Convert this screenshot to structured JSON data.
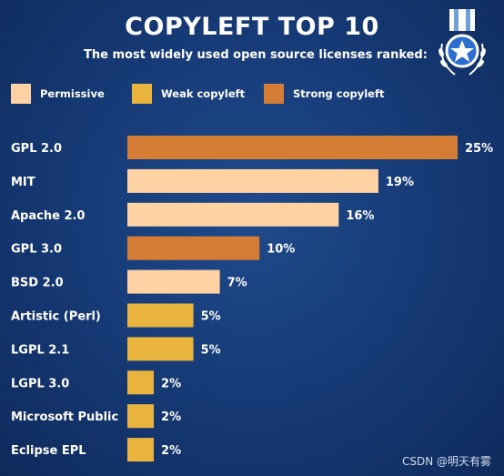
{
  "chart_data": {
    "type": "bar",
    "orientation": "horizontal",
    "title": "COPYLEFT TOP 10",
    "subtitle": "The most widely used open source licenses ranked:",
    "legend": [
      {
        "label": "Permissive",
        "color": "#ffd2a4"
      },
      {
        "label": "Weak copyleft",
        "color": "#e8b43e"
      },
      {
        "label": "Strong copyleft",
        "color": "#d57c35"
      }
    ],
    "legend_position": "top-left",
    "categories": [
      "GPL 2.0",
      "MIT",
      "Apache 2.0",
      "GPL 3.0",
      "BSD 2.0",
      "Artistic (Perl)",
      "LGPL 2.1",
      "LGPL 3.0",
      "Microsoft Public",
      "Eclipse EPL"
    ],
    "values": [
      25,
      19,
      16,
      10,
      7,
      5,
      5,
      2,
      2,
      2
    ],
    "value_labels": [
      "25%",
      "19%",
      "16%",
      "10%",
      "7%",
      "5%",
      "5%",
      "2%",
      "2%",
      "2%"
    ],
    "groups": [
      "Strong copyleft",
      "Permissive",
      "Permissive",
      "Strong copyleft",
      "Permissive",
      "Weak copyleft",
      "Weak copyleft",
      "Weak copyleft",
      "Weak copyleft",
      "Weak copyleft"
    ],
    "xlim": [
      0,
      25
    ],
    "grid": false
  },
  "watermark": "CSDN @明天有雾"
}
